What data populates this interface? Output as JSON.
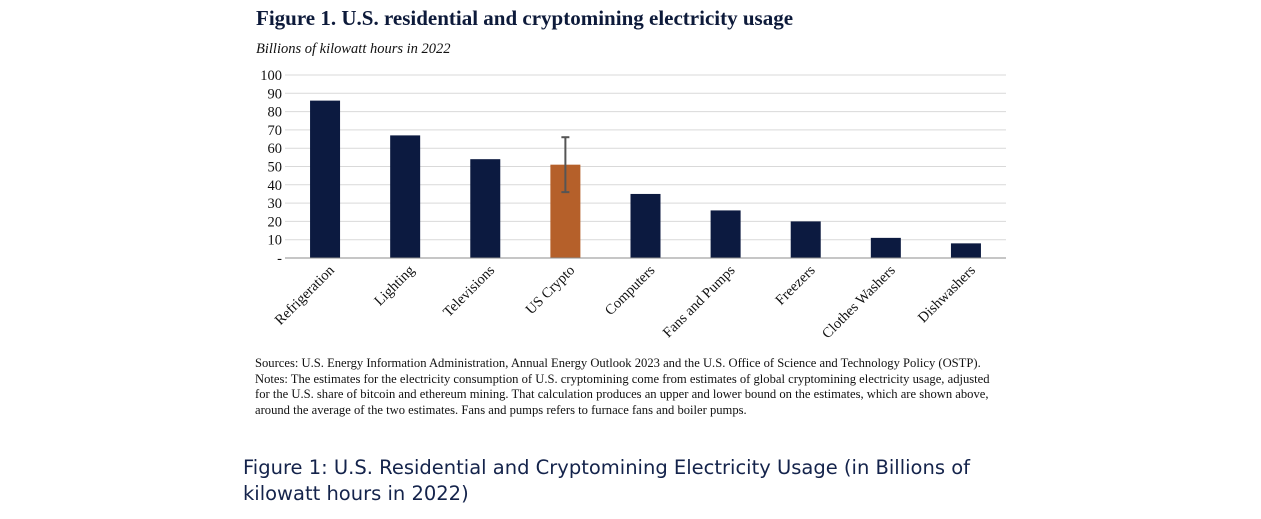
{
  "figure": {
    "title": "Figure 1. U.S. residential and cryptomining electricity usage",
    "subtitle": "Billions of kilowatt hours in 2022"
  },
  "chart_data": {
    "type": "bar",
    "categories": [
      "Refrigeration",
      "Lighting",
      "Televisions",
      "US Crypto",
      "Computers",
      "Fans and Pumps",
      "Freezers",
      "Clothes Washers",
      "Dishwashers"
    ],
    "values": [
      86,
      67,
      54,
      51,
      35,
      26,
      20,
      11,
      8
    ],
    "error_bar": {
      "category": "US Crypto",
      "lower": 36,
      "upper": 66
    },
    "ylim": [
      0,
      100
    ],
    "yticks": [
      0,
      10,
      20,
      30,
      40,
      50,
      60,
      70,
      80,
      90,
      100
    ],
    "ytick_labels": [
      "-",
      "10",
      "20",
      "30",
      "40",
      "50",
      "60",
      "70",
      "80",
      "90",
      "100"
    ],
    "grid": true,
    "colors": {
      "default": "#0c1a40",
      "highlight": "#b5602a",
      "highlight_category": "US Crypto",
      "grid": "#d9d9d9",
      "axis": "#8c8c8c",
      "error_bar": "#555555"
    }
  },
  "notes": {
    "sources": "Sources: U.S. Energy Information Administration, Annual Energy Outlook 2023 and the U.S. Office of Science and Technology Policy (OSTP).",
    "notes": "Notes: The estimates for the electricity consumption of U.S. cryptomining come from estimates of global cryptomining electricity usage, adjusted for the U.S. share of bitcoin and ethereum mining. That calculation produces an upper and lower bound on the estimates, which are shown above, around the average of the two estimates. Fans and pumps refers to furnace fans and boiler pumps."
  },
  "caption": "Figure 1: U.S. Residential and Cryptomining Electricity Usage (in Billions of kilowatt hours in 2022)"
}
